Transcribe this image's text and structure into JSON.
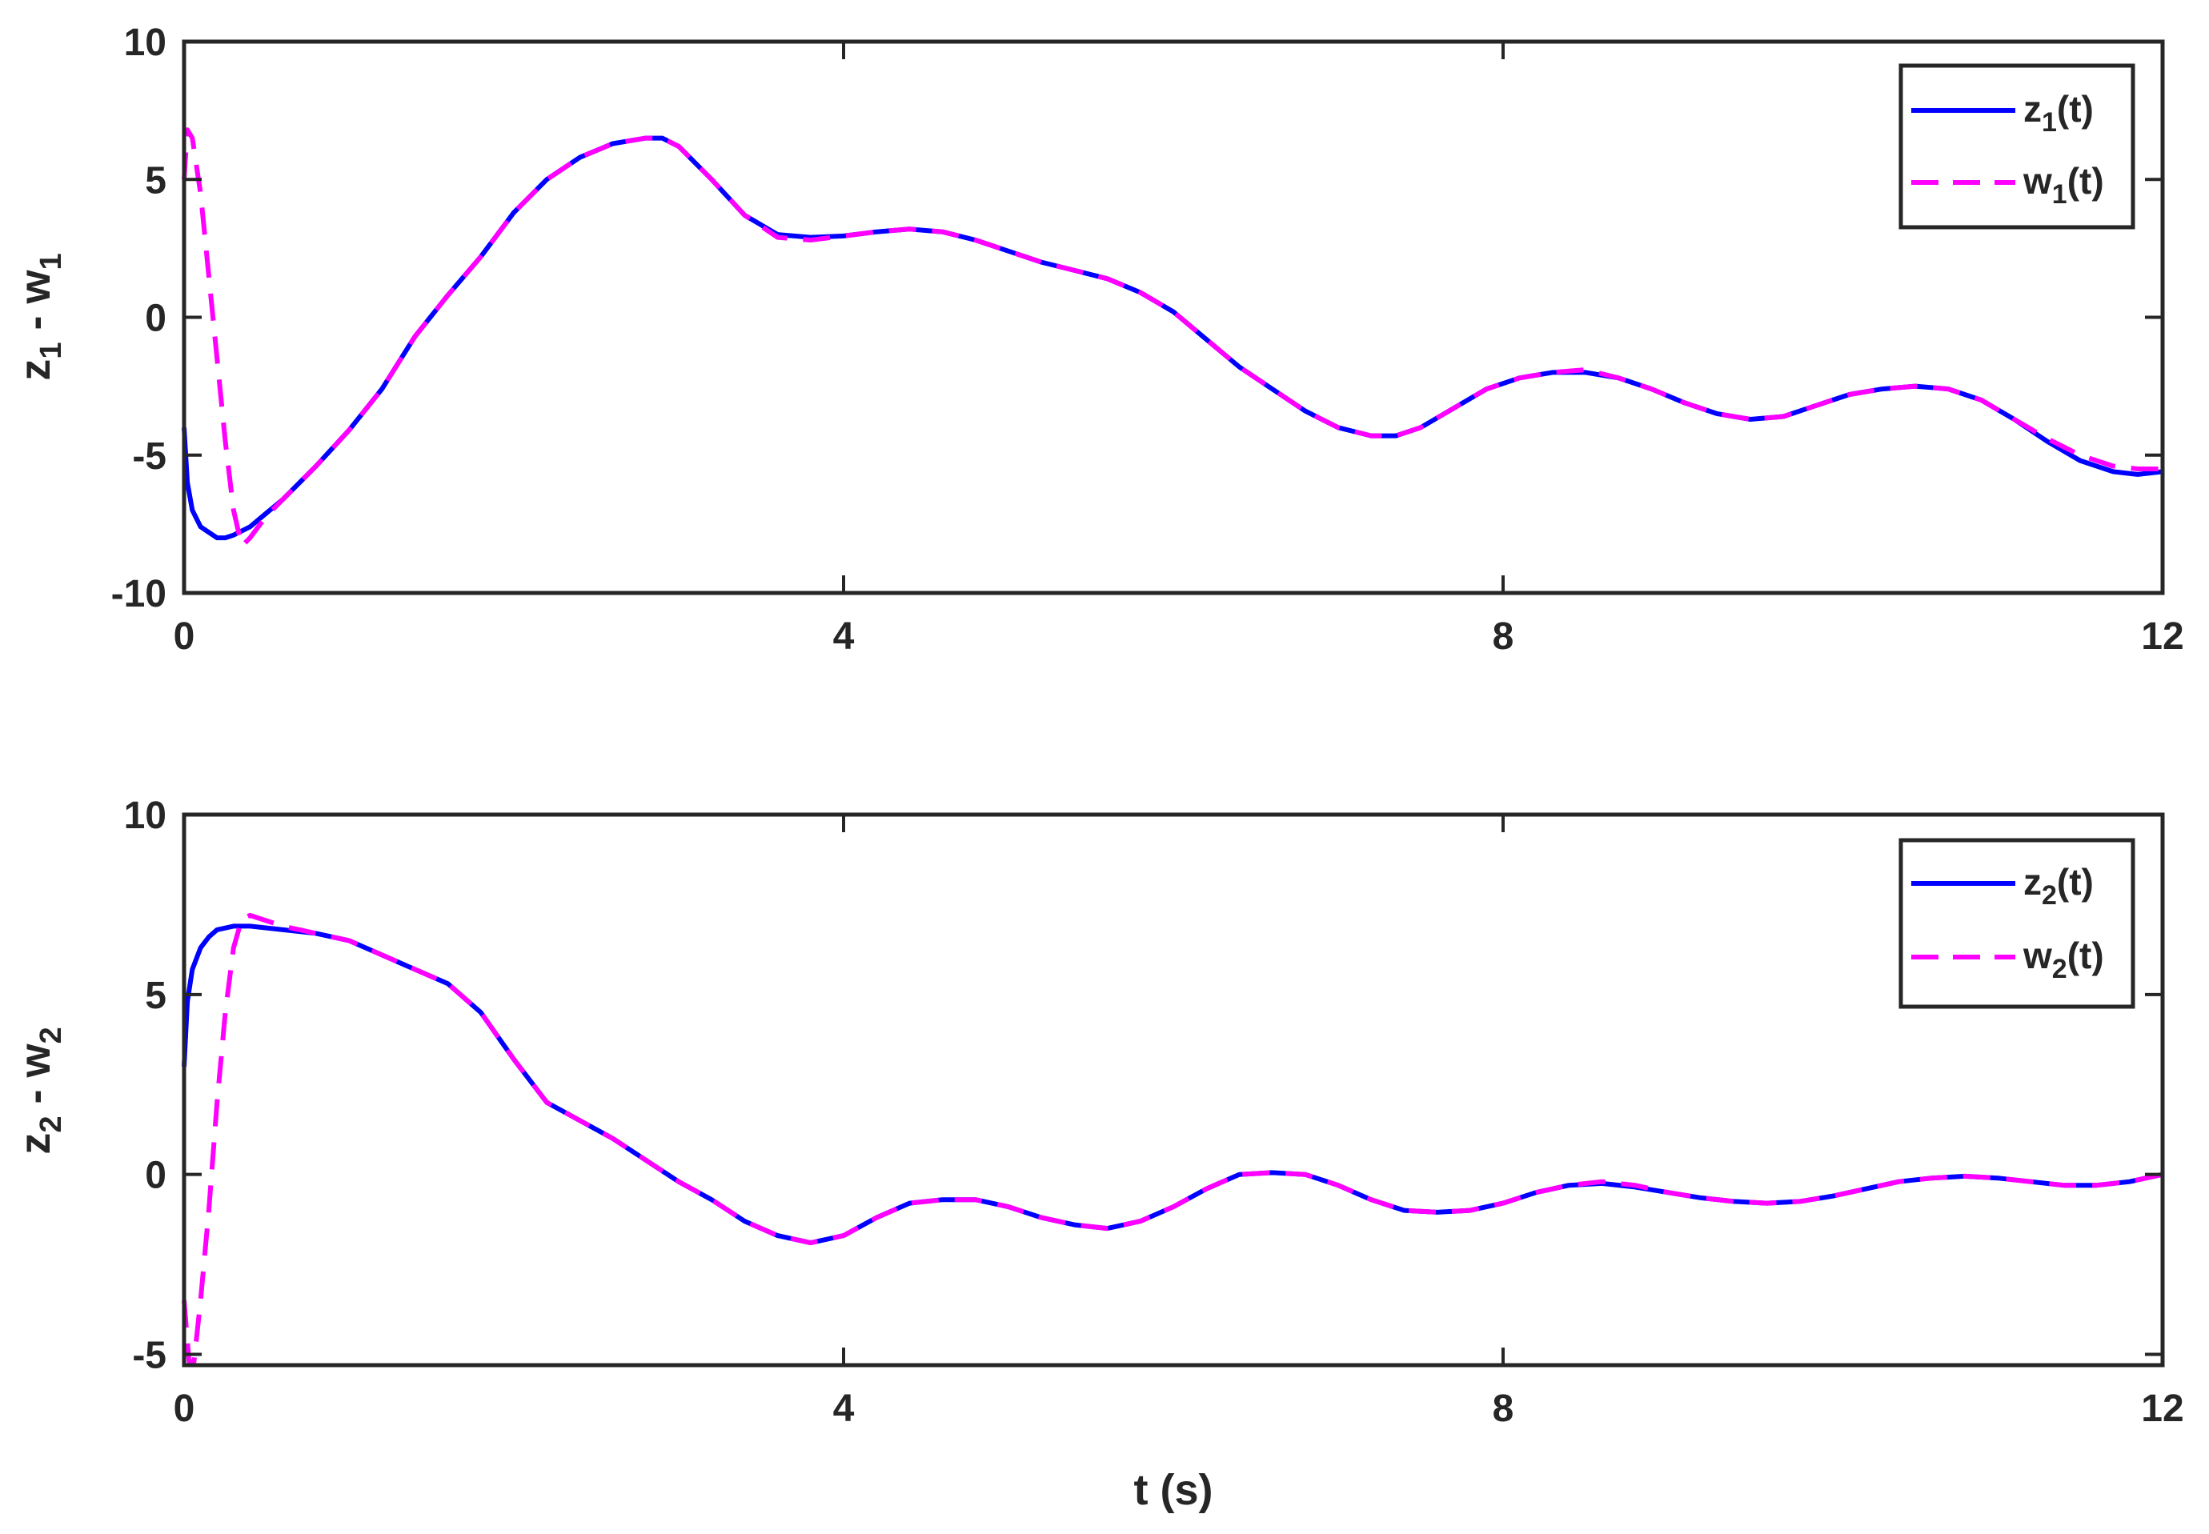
{
  "colors": {
    "z_series": "#0000FF",
    "w_series": "#FF00FF",
    "axes": "#262626",
    "background": "#FFFFFF"
  },
  "shared_xlabel": "t (s)",
  "chart_data": [
    {
      "type": "line",
      "ylabel_main": "z",
      "ylabel_sub1": "1",
      "ylabel_mid": " - w",
      "ylabel_sub2": "1",
      "xlim": [
        0,
        12
      ],
      "ylim": [
        -10,
        10
      ],
      "xticks": [
        0,
        4,
        8,
        12
      ],
      "yticks": [
        -10,
        -5,
        0,
        5,
        10
      ],
      "xtick_labels": [
        "0",
        "4",
        "8",
        "12"
      ],
      "ytick_labels": [
        "-10",
        "-5",
        "0",
        "5",
        "10"
      ],
      "grid": false,
      "legend_position": "top-right",
      "series": [
        {
          "name_main": "z",
          "name_sub": "1",
          "name_tail": "(t)",
          "style": "solid",
          "color": "#0000FF",
          "x": [
            0,
            0.02,
            0.05,
            0.1,
            0.2,
            0.25,
            0.3,
            0.4,
            0.5,
            0.6,
            0.8,
            1.0,
            1.2,
            1.4,
            1.6,
            1.8,
            2.0,
            2.2,
            2.4,
            2.6,
            2.8,
            2.9,
            3.0,
            3.2,
            3.4,
            3.6,
            3.8,
            4.0,
            4.2,
            4.4,
            4.6,
            4.8,
            5.0,
            5.2,
            5.4,
            5.6,
            5.8,
            6.0,
            6.2,
            6.4,
            6.6,
            6.8,
            7.0,
            7.2,
            7.35,
            7.5,
            7.7,
            7.9,
            8.1,
            8.3,
            8.5,
            8.7,
            8.9,
            9.1,
            9.3,
            9.5,
            9.7,
            9.9,
            10.1,
            10.3,
            10.5,
            10.7,
            10.9,
            11.1,
            11.3,
            11.5,
            11.7,
            11.85,
            12.0
          ],
          "y": [
            -4.0,
            -6.0,
            -7.0,
            -7.6,
            -8.0,
            -8.0,
            -7.9,
            -7.6,
            -7.1,
            -6.6,
            -5.4,
            -4.1,
            -2.6,
            -0.7,
            0.8,
            2.2,
            3.8,
            5.0,
            5.8,
            6.3,
            6.5,
            6.5,
            6.2,
            5.0,
            3.7,
            3.0,
            2.9,
            2.95,
            3.1,
            3.2,
            3.1,
            2.8,
            2.4,
            2.0,
            1.7,
            1.4,
            0.9,
            0.2,
            -0.8,
            -1.8,
            -2.6,
            -3.4,
            -4.0,
            -4.3,
            -4.3,
            -4.0,
            -3.3,
            -2.6,
            -2.2,
            -2.0,
            -2.0,
            -2.2,
            -2.6,
            -3.1,
            -3.5,
            -3.7,
            -3.6,
            -3.2,
            -2.8,
            -2.6,
            -2.5,
            -2.6,
            -3.0,
            -3.7,
            -4.5,
            -5.2,
            -5.6,
            -5.7,
            -5.6
          ]
        },
        {
          "name_main": "w",
          "name_sub": "1",
          "name_tail": "(t)",
          "style": "dashed",
          "color": "#FF00FF",
          "x": [
            0,
            0.02,
            0.05,
            0.1,
            0.15,
            0.2,
            0.25,
            0.3,
            0.35,
            0.4,
            0.5,
            0.6,
            0.8,
            1.0,
            1.2,
            1.4,
            1.6,
            1.8,
            2.0,
            2.2,
            2.4,
            2.6,
            2.8,
            2.9,
            3.0,
            3.2,
            3.4,
            3.6,
            3.8,
            4.0,
            4.2,
            4.4,
            4.6,
            4.8,
            5.0,
            5.2,
            5.4,
            5.6,
            5.8,
            6.0,
            6.2,
            6.4,
            6.6,
            6.8,
            7.0,
            7.2,
            7.35,
            7.5,
            7.7,
            7.9,
            8.1,
            8.3,
            8.5,
            8.7,
            8.9,
            9.1,
            9.3,
            9.5,
            9.7,
            9.9,
            10.1,
            10.3,
            10.5,
            10.7,
            10.9,
            11.1,
            11.3,
            11.5,
            11.7,
            11.85,
            12.0
          ],
          "y": [
            5.0,
            6.8,
            6.5,
            4.5,
            1.5,
            -1.5,
            -4.5,
            -7.0,
            -8.3,
            -8.0,
            -7.2,
            -6.6,
            -5.4,
            -4.1,
            -2.6,
            -0.7,
            0.8,
            2.2,
            3.8,
            5.0,
            5.8,
            6.3,
            6.5,
            6.5,
            6.2,
            5.0,
            3.7,
            2.9,
            2.8,
            2.95,
            3.1,
            3.2,
            3.1,
            2.8,
            2.4,
            2.0,
            1.7,
            1.4,
            0.9,
            0.2,
            -0.8,
            -1.8,
            -2.6,
            -3.4,
            -4.0,
            -4.3,
            -4.3,
            -4.0,
            -3.3,
            -2.6,
            -2.2,
            -2.0,
            -1.9,
            -2.2,
            -2.6,
            -3.1,
            -3.5,
            -3.7,
            -3.6,
            -3.2,
            -2.8,
            -2.6,
            -2.5,
            -2.6,
            -3.0,
            -3.7,
            -4.4,
            -5.0,
            -5.4,
            -5.5,
            -5.5
          ]
        }
      ]
    },
    {
      "type": "line",
      "ylabel_main": "z",
      "ylabel_sub1": "2",
      "ylabel_mid": " - w",
      "ylabel_sub2": "2",
      "xlim": [
        0,
        12
      ],
      "ylim": [
        -5.3,
        10
      ],
      "xticks": [
        0,
        4,
        8,
        12
      ],
      "yticks": [
        -5,
        0,
        5,
        10
      ],
      "xtick_labels": [
        "0",
        "4",
        "8",
        "12"
      ],
      "ytick_labels": [
        "-5",
        "0",
        "5",
        "10"
      ],
      "grid": false,
      "legend_position": "top-right",
      "series": [
        {
          "name_main": "z",
          "name_sub": "2",
          "name_tail": "(t)",
          "style": "solid",
          "color": "#0000FF",
          "x": [
            0,
            0.02,
            0.05,
            0.1,
            0.15,
            0.2,
            0.3,
            0.4,
            0.6,
            0.8,
            1.0,
            1.2,
            1.4,
            1.6,
            1.8,
            2.0,
            2.2,
            2.4,
            2.6,
            2.8,
            3.0,
            3.2,
            3.4,
            3.6,
            3.8,
            4.0,
            4.2,
            4.4,
            4.6,
            4.8,
            5.0,
            5.2,
            5.4,
            5.6,
            5.8,
            6.0,
            6.2,
            6.4,
            6.6,
            6.8,
            7.0,
            7.2,
            7.4,
            7.6,
            7.8,
            8.0,
            8.2,
            8.4,
            8.6,
            8.8,
            9.0,
            9.2,
            9.4,
            9.6,
            9.8,
            10.0,
            10.2,
            10.4,
            10.6,
            10.8,
            11.0,
            11.2,
            11.4,
            11.6,
            11.8,
            12.0
          ],
          "y": [
            3.0,
            4.8,
            5.7,
            6.3,
            6.6,
            6.8,
            6.9,
            6.9,
            6.8,
            6.7,
            6.5,
            6.1,
            5.7,
            5.3,
            4.5,
            3.2,
            2.0,
            1.5,
            1.0,
            0.4,
            -0.2,
            -0.7,
            -1.3,
            -1.7,
            -1.9,
            -1.7,
            -1.2,
            -0.8,
            -0.7,
            -0.7,
            -0.9,
            -1.2,
            -1.4,
            -1.5,
            -1.3,
            -0.9,
            -0.4,
            0.0,
            0.05,
            0.0,
            -0.3,
            -0.7,
            -1.0,
            -1.05,
            -1.0,
            -0.8,
            -0.5,
            -0.3,
            -0.25,
            -0.35,
            -0.5,
            -0.65,
            -0.75,
            -0.8,
            -0.75,
            -0.6,
            -0.4,
            -0.2,
            -0.1,
            -0.05,
            -0.1,
            -0.2,
            -0.3,
            -0.3,
            -0.2,
            0.0
          ]
        },
        {
          "name_main": "w",
          "name_sub": "2",
          "name_tail": "(t)",
          "style": "dashed",
          "color": "#FF00FF",
          "x": [
            0,
            0.03,
            0.06,
            0.1,
            0.15,
            0.2,
            0.25,
            0.3,
            0.35,
            0.4,
            0.6,
            0.8,
            1.0,
            1.2,
            1.4,
            1.6,
            1.8,
            2.0,
            2.2,
            2.4,
            2.6,
            2.8,
            3.0,
            3.2,
            3.4,
            3.6,
            3.8,
            4.0,
            4.2,
            4.4,
            4.6,
            4.8,
            5.0,
            5.2,
            5.4,
            5.6,
            5.8,
            6.0,
            6.2,
            6.4,
            6.6,
            6.8,
            7.0,
            7.2,
            7.4,
            7.6,
            7.8,
            8.0,
            8.2,
            8.4,
            8.6,
            8.8,
            9.0,
            9.2,
            9.4,
            9.6,
            9.8,
            10.0,
            10.2,
            10.4,
            10.6,
            10.8,
            11.0,
            11.2,
            11.4,
            11.6,
            11.8,
            12.0
          ],
          "y": [
            -3.5,
            -5.2,
            -5.2,
            -3.5,
            -1.0,
            2.0,
            4.5,
            6.3,
            7.1,
            7.2,
            6.9,
            6.7,
            6.5,
            6.1,
            5.7,
            5.3,
            4.5,
            3.2,
            2.0,
            1.5,
            1.0,
            0.4,
            -0.2,
            -0.7,
            -1.3,
            -1.7,
            -1.9,
            -1.7,
            -1.2,
            -0.8,
            -0.7,
            -0.7,
            -0.9,
            -1.2,
            -1.4,
            -1.5,
            -1.3,
            -0.9,
            -0.4,
            0.0,
            0.05,
            0.0,
            -0.3,
            -0.7,
            -1.0,
            -1.05,
            -1.0,
            -0.8,
            -0.5,
            -0.3,
            -0.2,
            -0.3,
            -0.5,
            -0.65,
            -0.75,
            -0.8,
            -0.75,
            -0.6,
            -0.4,
            -0.2,
            -0.1,
            -0.05,
            -0.1,
            -0.2,
            -0.3,
            -0.3,
            -0.2,
            0.0
          ]
        }
      ]
    }
  ]
}
